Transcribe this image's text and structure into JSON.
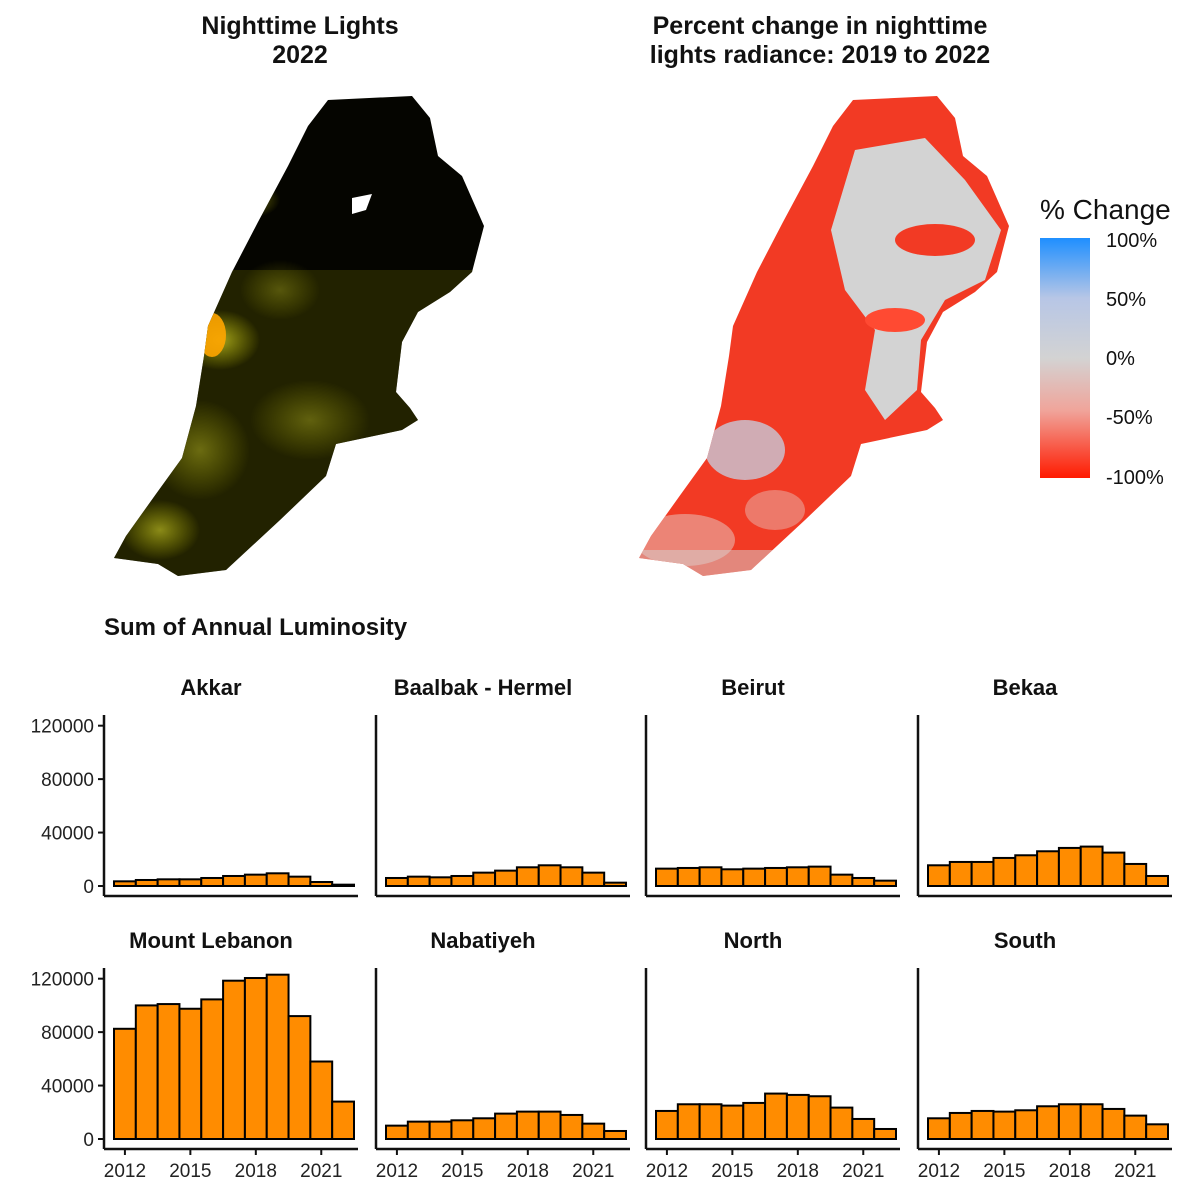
{
  "maps": {
    "left_title": [
      "Nighttime Lights",
      "2022"
    ],
    "right_title": [
      "Percent change in nighttime",
      "lights radiance: 2019 to 2022"
    ]
  },
  "legend": {
    "title": "% Change",
    "ticks": [
      "100%",
      "50%",
      "0%",
      "-50%",
      "-100%"
    ],
    "colors": {
      "high": "#1f8fff",
      "mid": "#d3d3d3",
      "low": "#ff1a00"
    }
  },
  "section_title": "Sum of Annual Luminosity",
  "chart_data": {
    "type": "bar",
    "title": "Sum of Annual Luminosity",
    "bar_color": "#ff8c00",
    "x_tick_labels": [
      "2012",
      "2015",
      "2018",
      "2021"
    ],
    "x_ticks": [
      2012,
      2015,
      2018,
      2021
    ],
    "years": [
      2012,
      2013,
      2014,
      2015,
      2016,
      2017,
      2018,
      2019,
      2020,
      2021,
      2022
    ],
    "y_tick_labels": [
      "0",
      "40000",
      "80000",
      "120000"
    ],
    "y_ticks": [
      0,
      40000,
      80000,
      120000
    ],
    "ylim": [
      0,
      128000
    ],
    "panels": [
      {
        "name": "Akkar",
        "values": [
          3500,
          4500,
          5000,
          5000,
          6000,
          7500,
          8500,
          9500,
          7000,
          3000,
          1000
        ]
      },
      {
        "name": "Baalbak - Hermel",
        "values": [
          6000,
          7000,
          6500,
          7500,
          10000,
          11500,
          14000,
          15500,
          14000,
          10000,
          2500
        ]
      },
      {
        "name": "Beirut",
        "values": [
          13000,
          13500,
          14000,
          12500,
          13000,
          13500,
          14000,
          14500,
          8500,
          6000,
          4000
        ]
      },
      {
        "name": "Bekaa",
        "values": [
          15500,
          18000,
          18000,
          21000,
          23000,
          26000,
          28500,
          29500,
          25000,
          16500,
          7500
        ]
      },
      {
        "name": "Mount Lebanon",
        "values": [
          82500,
          100000,
          101000,
          97500,
          104500,
          118500,
          120500,
          123000,
          92000,
          58000,
          28000
        ]
      },
      {
        "name": "Nabatiyeh",
        "values": [
          10000,
          13000,
          13000,
          14000,
          15500,
          19000,
          20500,
          20500,
          18000,
          11500,
          6000
        ]
      },
      {
        "name": "North",
        "values": [
          21000,
          26000,
          26000,
          25000,
          27000,
          34000,
          33000,
          32000,
          23500,
          15000,
          7500
        ]
      },
      {
        "name": "South",
        "values": [
          15500,
          19500,
          21000,
          20500,
          21500,
          24500,
          26000,
          26000,
          22500,
          17500,
          11000
        ]
      }
    ]
  }
}
